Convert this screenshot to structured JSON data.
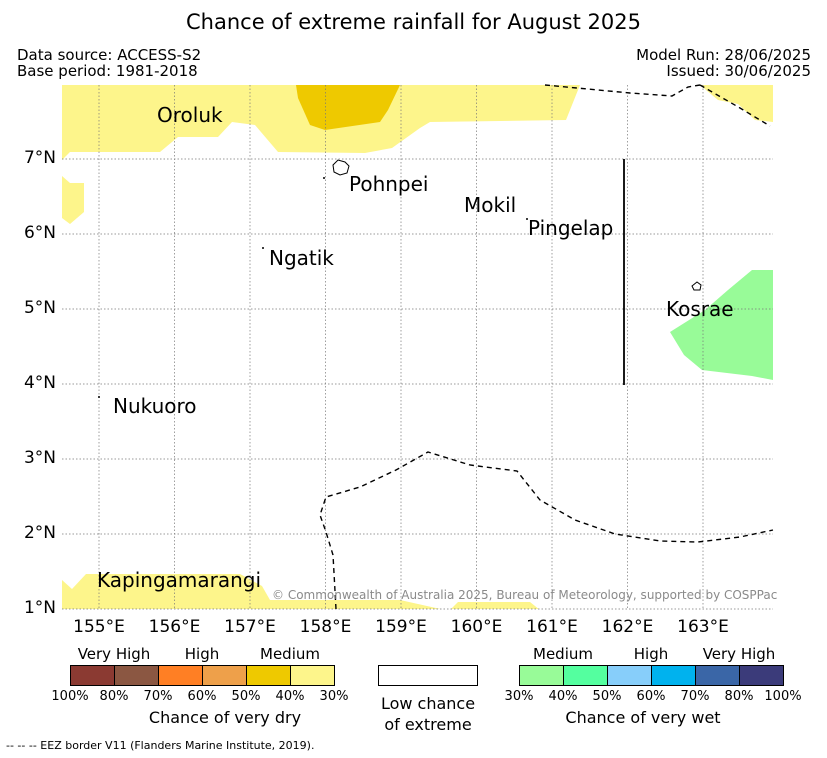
{
  "title": "Chance of extreme rainfall for August 2025",
  "meta": {
    "data_source": "Data source: ACCESS-S2",
    "base_period": "Base period: 1981-2018",
    "model_run": "Model Run: 28/06/2025",
    "issued": "Issued: 30/06/2025"
  },
  "map": {
    "lat_ticks": [
      "7°N",
      "6°N",
      "5°N",
      "4°N",
      "3°N",
      "2°N",
      "1°N"
    ],
    "lon_ticks": [
      "155°E",
      "156°E",
      "157°E",
      "158°E",
      "159°E",
      "160°E",
      "161°E",
      "162°E",
      "163°E"
    ],
    "places": {
      "oroluk": "Oroluk",
      "pohnpei": "Pohnpei",
      "mokil": "Mokil",
      "pingelap": "Pingelap",
      "ngatik": "Ngatik",
      "kosrae": "Kosrae",
      "nukuoro": "Nukuoro",
      "kapingamarangi": "Kapingamarangi"
    },
    "copyright": "© Commonwealth of Australia 2025, Bureau of Meteorology, supported by COSPPac",
    "colors": {
      "dry_medium_30": "#fdf58b",
      "dry_medium_40": "#eec900",
      "wet_medium_30": "#98fb98"
    }
  },
  "legend": {
    "dry": {
      "categories": [
        "Very High",
        "High",
        "Medium"
      ],
      "colors": [
        "#8b3a32",
        "#8b5742",
        "#ff7f24",
        "#eea04a",
        "#eec900",
        "#fdf58b"
      ],
      "percents": [
        "100%",
        "80%",
        "70%",
        "60%",
        "50%",
        "40%",
        "30%"
      ],
      "title": "Chance of very dry"
    },
    "low": {
      "line1": "Low chance",
      "line2": "of extreme"
    },
    "wet": {
      "categories": [
        "Medium",
        "High",
        "Very High"
      ],
      "colors": [
        "#98fb98",
        "#54ff9f",
        "#87cefa",
        "#00b2ee",
        "#3a66a7",
        "#3b3b7a"
      ],
      "percents": [
        "30%",
        "40%",
        "50%",
        "60%",
        "70%",
        "80%",
        "100%"
      ],
      "title": "Chance of very wet"
    }
  },
  "footnote": "--  --  -- EEZ border V11 (Flanders Marine Institute, 2019)."
}
